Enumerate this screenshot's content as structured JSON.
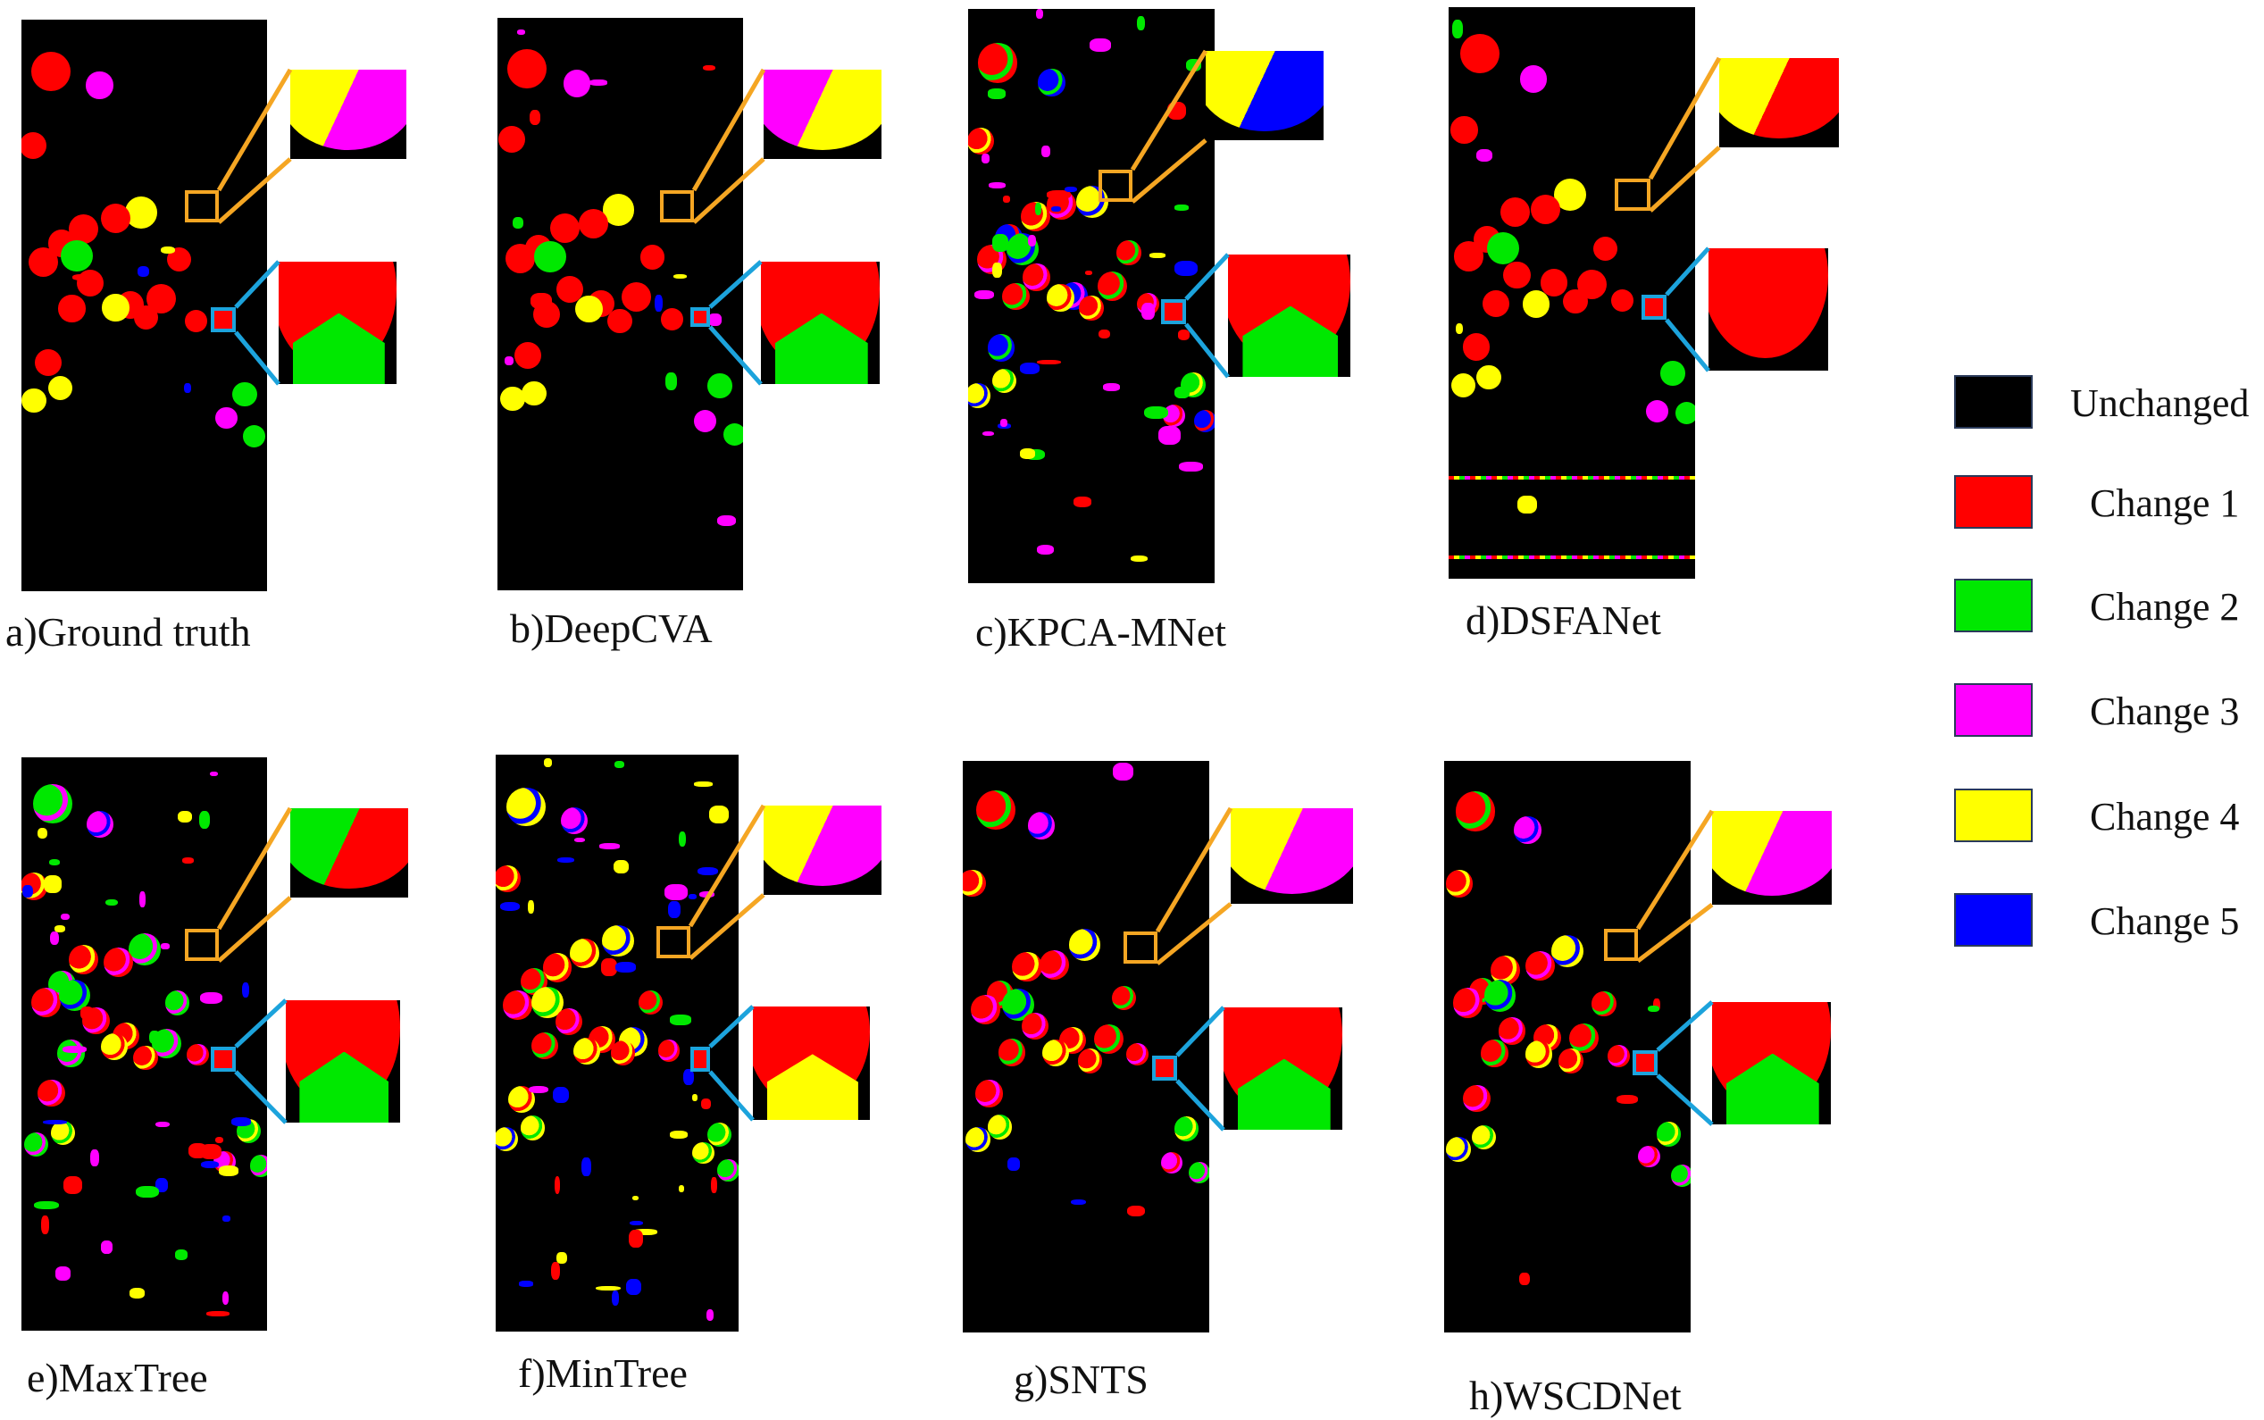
{
  "colors": {
    "unchanged": "#000000",
    "change1": "#ff0000",
    "change2": "#00e800",
    "change3": "#ff00ff",
    "change4": "#ffff00",
    "change5": "#0000ff",
    "orange_box": "#f5a623",
    "blue_box": "#1ca3dc"
  },
  "legend": [
    {
      "label": "Unchanged",
      "color": "#000000"
    },
    {
      "label": "Change 1",
      "color": "#ff0000"
    },
    {
      "label": "Change 2",
      "color": "#00e800"
    },
    {
      "label": "Change 3",
      "color": "#ff00ff"
    },
    {
      "label": "Change 4",
      "color": "#ffff00"
    },
    {
      "label": "Change 5",
      "color": "#0000ff"
    }
  ],
  "panels": [
    {
      "id": "a",
      "caption": "a)Ground truth"
    },
    {
      "id": "b",
      "caption": "b)DeepCVA"
    },
    {
      "id": "c",
      "caption": "c)KPCA-MNet"
    },
    {
      "id": "d",
      "caption": "d)DSFANet"
    },
    {
      "id": "e",
      "caption": "e)MaxTree"
    },
    {
      "id": "f",
      "caption": "f)MinTree"
    },
    {
      "id": "g",
      "caption": "g)SNTS"
    },
    {
      "id": "h",
      "caption": "h)WSCDNet"
    }
  ]
}
